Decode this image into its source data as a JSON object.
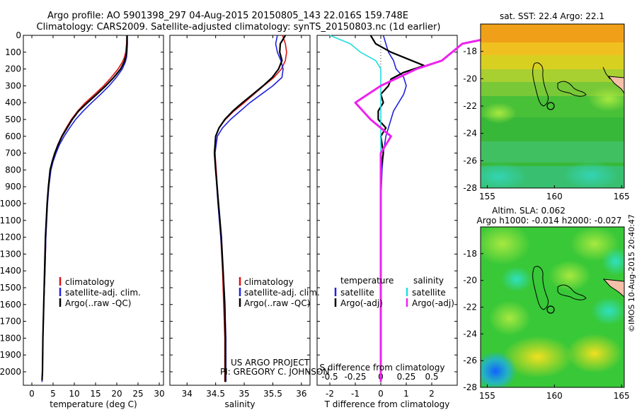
{
  "header": {
    "line1": "Argo profile: AO 5901398_297 04-Aug-2015 20150805_143 22.016S 159.748E",
    "line2": "Climatology: CARS2009. Satellite-adjusted climatology: synTS_20150803.nc (1d earlier)"
  },
  "side_text": "©IMOS 10-Aug-2015 20:40:47",
  "project_text": {
    "line1": "US ARGO PROJECT",
    "line2": "PI: GREGORY C. JOHNSON"
  },
  "colors": {
    "climatology": "#dd1111",
    "satellite": "#2222dd",
    "argo": "#000000",
    "sat_salinity": "#22dddd",
    "argo_adj_salinity": "#ee22ee"
  },
  "chart_data": [
    {
      "type": "line",
      "id": "temperature",
      "xlabel": "temperature (deg C)",
      "xlim": [
        -2,
        31
      ],
      "xticks": [
        0,
        5,
        10,
        15,
        20,
        25,
        30
      ],
      "ylim": [
        0,
        2080
      ],
      "yticks": [
        0,
        100,
        200,
        300,
        400,
        500,
        600,
        700,
        800,
        900,
        1000,
        1100,
        1200,
        1300,
        1400,
        1500,
        1600,
        1700,
        1800,
        1900,
        2000
      ],
      "legend": [
        "climatology",
        "satellite-adj. clim.",
        "Argo(..raw -QC)"
      ],
      "series": [
        {
          "name": "climatology",
          "x": [
            22.4,
            22.3,
            22.1,
            21.8,
            21.3,
            20.3,
            18.7,
            16.9,
            14.8,
            12.6,
            10.8,
            9.3,
            8.1,
            7.0,
            6.1,
            5.4,
            4.8,
            4.3,
            3.9,
            3.6,
            3.3,
            3.1,
            2.8,
            2.6,
            2.5,
            2.4
          ],
          "y": [
            0,
            50,
            100,
            130,
            160,
            200,
            250,
            300,
            350,
            400,
            450,
            500,
            550,
            600,
            650,
            700,
            750,
            800,
            900,
            1000,
            1200,
            1400,
            1600,
            1800,
            2000,
            2060
          ]
        },
        {
          "name": "satellite-adj. clim.",
          "x": [
            22.5,
            22.5,
            22.4,
            22.3,
            22.0,
            21.3,
            19.9,
            18.2,
            16.2,
            14.1,
            12.1,
            10.3,
            8.9,
            7.6,
            6.5,
            5.7,
            5.0,
            4.5,
            4.0,
            3.7,
            3.3,
            3.1,
            2.8,
            2.6,
            2.5,
            2.4
          ],
          "y": [
            0,
            50,
            100,
            130,
            160,
            200,
            250,
            300,
            350,
            400,
            450,
            500,
            550,
            600,
            650,
            700,
            750,
            800,
            900,
            1000,
            1200,
            1400,
            1600,
            1800,
            2000,
            2060
          ]
        },
        {
          "name": "Argo(..raw -QC)",
          "x": [
            22.4,
            22.4,
            22.3,
            22.1,
            21.7,
            20.9,
            19.3,
            17.4,
            15.3,
            13.1,
            11.0,
            9.5,
            8.3,
            7.1,
            6.2,
            5.4,
            4.8,
            4.3,
            3.9,
            3.6,
            3.2,
            3.0,
            2.8,
            2.6,
            2.5,
            2.4
          ],
          "y": [
            0,
            50,
            100,
            130,
            160,
            200,
            250,
            300,
            350,
            400,
            450,
            500,
            550,
            600,
            650,
            700,
            750,
            800,
            900,
            1000,
            1200,
            1400,
            1600,
            1800,
            2000,
            2050
          ]
        }
      ]
    },
    {
      "type": "line",
      "id": "salinity",
      "xlabel": "salinity",
      "xlim": [
        33.7,
        36.15
      ],
      "xticks": [
        34,
        34.5,
        35,
        35.5,
        36
      ],
      "xtick_labels": [
        "34",
        "34.5",
        "35",
        "35.5",
        "36"
      ],
      "ylim": [
        0,
        2080
      ],
      "legend": [
        "climatology",
        "satellite-adj. clim.",
        "Argo(..raw -QC)"
      ],
      "series": [
        {
          "name": "climatology",
          "x": [
            35.67,
            35.72,
            35.74,
            35.72,
            35.65,
            35.52,
            35.34,
            35.17,
            35.0,
            34.82,
            34.67,
            34.56,
            34.5,
            34.49,
            34.51,
            34.55,
            34.59,
            34.62,
            34.64,
            34.66,
            34.66
          ],
          "y": [
            0,
            50,
            100,
            150,
            200,
            250,
            300,
            350,
            400,
            450,
            500,
            550,
            600,
            700,
            800,
            1000,
            1200,
            1400,
            1600,
            1800,
            2060
          ]
        },
        {
          "name": "satellite-adj. clim.",
          "x": [
            35.58,
            35.55,
            35.58,
            35.64,
            35.68,
            35.66,
            35.5,
            35.3,
            35.1,
            34.93,
            34.76,
            34.62,
            34.53,
            34.49,
            34.5,
            34.54,
            34.59,
            34.63,
            34.66,
            34.68,
            34.68
          ],
          "y": [
            0,
            50,
            100,
            150,
            200,
            250,
            300,
            350,
            400,
            450,
            500,
            550,
            600,
            700,
            800,
            1000,
            1200,
            1400,
            1600,
            1800,
            2060
          ]
        },
        {
          "name": "Argo(..raw -QC)",
          "x": [
            35.72,
            35.63,
            35.62,
            35.66,
            35.6,
            35.49,
            35.33,
            35.15,
            34.97,
            34.8,
            34.66,
            34.56,
            34.5,
            34.48,
            34.5,
            34.55,
            34.6,
            34.63,
            34.66,
            34.67,
            34.67
          ],
          "y": [
            0,
            50,
            100,
            150,
            200,
            250,
            300,
            350,
            400,
            450,
            500,
            550,
            600,
            700,
            800,
            1000,
            1200,
            1400,
            1600,
            1800,
            2060
          ]
        }
      ]
    },
    {
      "type": "line",
      "id": "difference",
      "xlabel": "T difference from climatology",
      "xlabel_top": "S difference from climatology",
      "xlim": [
        -2.5,
        3.0
      ],
      "xticks": [
        -2,
        -1,
        0,
        1,
        2
      ],
      "s_ticks": [
        -0.5,
        -0.25,
        0,
        0.25,
        0.5
      ],
      "s_tick_labels": [
        "-0.5",
        "-0.25",
        "0",
        "0.25",
        "0.5"
      ],
      "ylim": [
        0,
        2080
      ],
      "legend_headers": [
        "temperature",
        "salinity"
      ],
      "legend": [
        "satellite",
        "Argo(-adj)",
        "satellite",
        "Argo(-adj)"
      ],
      "series": [
        {
          "name": "satellite",
          "group": "temperature",
          "x": [
            0.1,
            0.2,
            0.3,
            0.5,
            0.6,
            0.9,
            1.0,
            0.9,
            0.7,
            0.5,
            0.4,
            0.3,
            0.2,
            0.1,
            0.05,
            0.0,
            0.0,
            0.0,
            0.0
          ],
          "y": [
            0,
            50,
            100,
            150,
            200,
            250,
            300,
            350,
            400,
            450,
            500,
            550,
            600,
            700,
            800,
            1000,
            1400,
            1800,
            2060
          ]
        },
        {
          "name": "Argo(-adj)",
          "group": "temperature",
          "x": [
            -0.4,
            -0.2,
            0.4,
            1.7,
            0.9,
            0.4,
            0.3,
            0.0,
            0.1,
            -0.1,
            -0.1,
            0.2,
            0.0,
            0.1,
            0.0,
            0.0,
            0.0,
            0.0,
            0.0
          ],
          "y": [
            0,
            50,
            100,
            180,
            220,
            260,
            300,
            350,
            400,
            450,
            500,
            550,
            600,
            700,
            800,
            1000,
            1400,
            1800,
            2060
          ]
        },
        {
          "name": "satellite",
          "group": "salinity",
          "x": [
            -0.5,
            -0.3,
            -0.2,
            -0.05,
            0.0,
            0.0,
            0.0,
            0.0,
            0.0,
            0.0,
            0.0,
            0.0
          ],
          "y": [
            0,
            50,
            100,
            150,
            200,
            300,
            500,
            800,
            1100,
            1400,
            1800,
            2060
          ]
        },
        {
          "name": "Argo(-adj)",
          "group": "salinity",
          "x": [
            1.2,
            0.8,
            0.7,
            0.6,
            0.35,
            0.0,
            -0.25,
            -0.1,
            0.1,
            0.0,
            0.0,
            0.0,
            0.0,
            0.0
          ],
          "y": [
            0,
            50,
            100,
            150,
            200,
            300,
            400,
            500,
            600,
            700,
            800,
            1100,
            1500,
            2060
          ]
        }
      ]
    },
    {
      "type": "heatmap",
      "id": "sst_map",
      "title": "sat. SST: 22.4  Argo: 22.1",
      "xlim": [
        154.5,
        165.2
      ],
      "ylim": [
        -28,
        -16
      ],
      "xticks": [
        155,
        160,
        165
      ],
      "yticks": [
        -18,
        -20,
        -22,
        -24,
        -26,
        -28
      ],
      "float_position": {
        "lon": 159.75,
        "lat": -22.0
      }
    },
    {
      "type": "heatmap",
      "id": "sla_map",
      "title_line1": "Altim. SLA: 0.062",
      "title_line2": "Argo h1000: -0.014  h2000: -0.027",
      "xlim": [
        154.5,
        165.2
      ],
      "ylim": [
        -28,
        -16
      ],
      "xticks": [
        155,
        160,
        165
      ],
      "yticks": [
        -18,
        -20,
        -22,
        -24,
        -26,
        -28
      ],
      "float_position": {
        "lon": 159.75,
        "lat": -22.0
      }
    }
  ]
}
